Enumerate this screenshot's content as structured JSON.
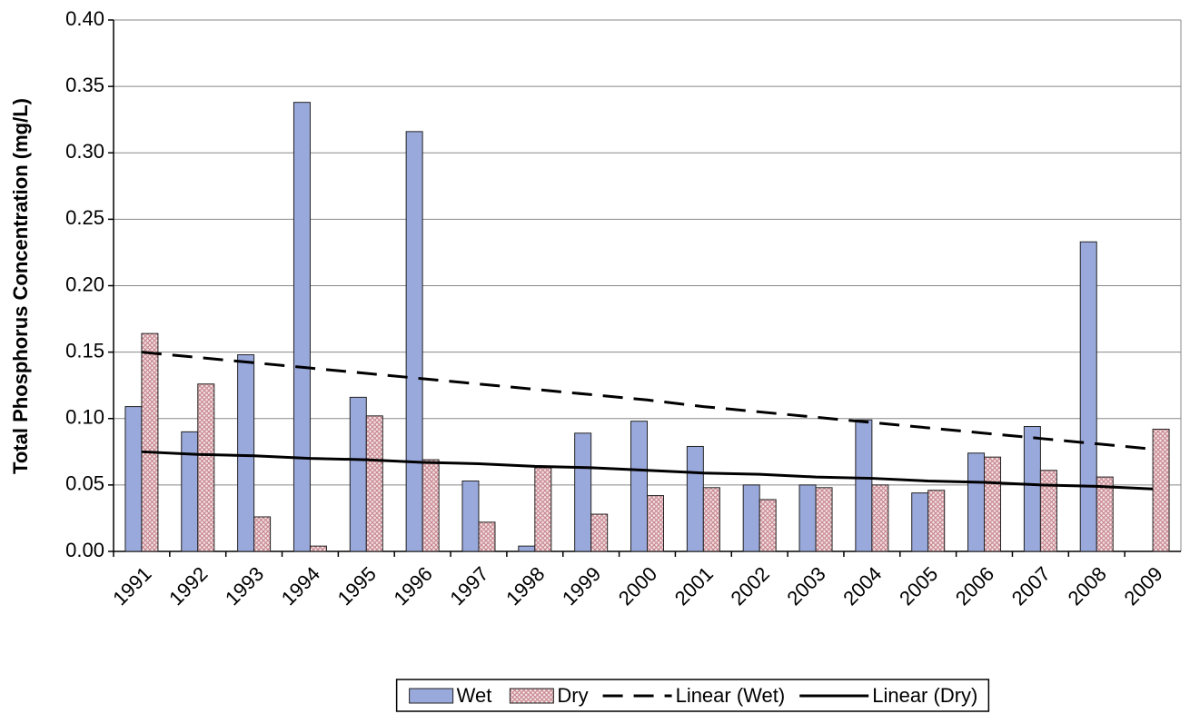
{
  "chart_data": {
    "type": "bar",
    "y_label": "Total Phosphorus Concentration (mg/L)",
    "categories": [
      "1991",
      "1992",
      "1993",
      "1994",
      "1995",
      "1996",
      "1997",
      "1998",
      "1999",
      "2000",
      "2001",
      "2002",
      "2003",
      "2004",
      "2005",
      "2006",
      "2007",
      "2008",
      "2009"
    ],
    "series": [
      {
        "name": "Wet",
        "type": "bar",
        "color": "#9aa9dc",
        "values": [
          0.109,
          0.09,
          0.148,
          0.338,
          0.116,
          0.316,
          0.053,
          0.004,
          0.089,
          0.098,
          0.079,
          0.05,
          0.05,
          0.099,
          0.044,
          0.074,
          0.094,
          0.233,
          null
        ]
      },
      {
        "name": "Dry",
        "type": "bar",
        "color": "#c98a92",
        "pattern": "crosshatch",
        "values": [
          0.164,
          0.126,
          0.026,
          0.004,
          0.102,
          0.069,
          0.022,
          0.063,
          0.028,
          0.042,
          0.048,
          0.039,
          0.048,
          0.05,
          0.046,
          0.071,
          0.061,
          0.056,
          0.092
        ]
      },
      {
        "name": "Linear (Wet)",
        "type": "line",
        "color": "#000000",
        "line_style": "dashed",
        "values": [
          0.15,
          0.146,
          0.142,
          0.138,
          0.134,
          0.13,
          0.126,
          0.122,
          0.118,
          0.114,
          0.109,
          0.105,
          0.101,
          0.097,
          0.093,
          0.089,
          0.085,
          0.081,
          0.077
        ]
      },
      {
        "name": "Linear (Dry)",
        "type": "line",
        "color": "#000000",
        "line_style": "solid",
        "values": [
          0.075,
          0.073,
          0.072,
          0.07,
          0.069,
          0.067,
          0.066,
          0.064,
          0.063,
          0.061,
          0.059,
          0.058,
          0.056,
          0.055,
          0.053,
          0.052,
          0.05,
          0.049,
          0.047
        ]
      }
    ],
    "ylim": [
      0,
      0.4
    ],
    "yticks": [
      {
        "value": 0,
        "label": "0.00"
      },
      {
        "value": 0.05,
        "label": "0.05"
      },
      {
        "value": 0.1,
        "label": "0.10"
      },
      {
        "value": 0.15,
        "label": "0.15"
      },
      {
        "value": 0.2,
        "label": "0.20"
      },
      {
        "value": 0.25,
        "label": "0.25"
      },
      {
        "value": 0.3,
        "label": "0.30"
      },
      {
        "value": 0.35,
        "label": "0.35"
      },
      {
        "value": 0.4,
        "label": "0.40"
      }
    ],
    "grid": true,
    "legend": "bottom"
  }
}
